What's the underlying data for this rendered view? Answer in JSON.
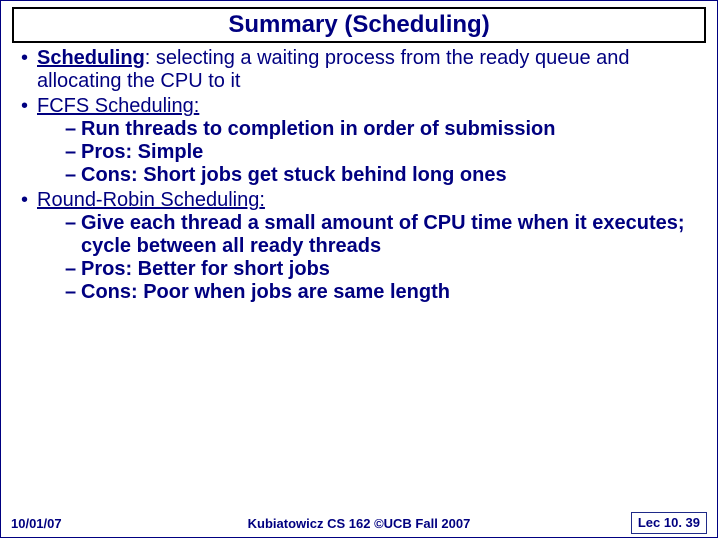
{
  "title": "Summary (Scheduling)",
  "b1": {
    "term": "Scheduling",
    "rest": ": selecting a waiting process from the ready queue and allocating the CPU to it"
  },
  "b2": {
    "term": "FCFS Scheduling",
    "colon": ":",
    "s1": "Run threads to completion in order of submission",
    "s2": "Pros: Simple",
    "s3": "Cons: Short jobs get stuck behind long ones"
  },
  "b3": {
    "term": "Round-Robin Scheduling",
    "colon": ":",
    "s1": "Give each thread a small amount of CPU time when it executes; cycle between all ready threads",
    "s2": "Pros: Better for short jobs",
    "s3": "Cons: Poor when jobs are same length"
  },
  "footer": {
    "date": "10/01/07",
    "center": "Kubiatowicz CS 162 ©UCB Fall 2007",
    "page": "Lec 10. 39"
  },
  "colors": {
    "text": "#000080",
    "border": "#000000",
    "slide_border": "#000080",
    "background": "#ffffff"
  },
  "fonts": {
    "family": "Comic Sans MS",
    "title_size_pt": 24,
    "body_size_pt": 20,
    "footer_size_pt": 13
  }
}
